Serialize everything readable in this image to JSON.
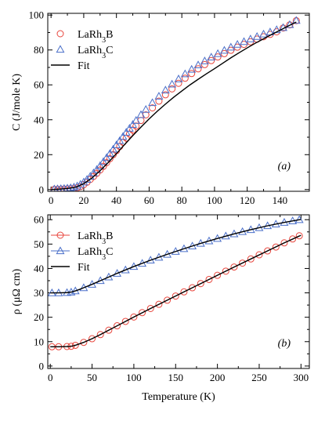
{
  "chart_data": [
    {
      "type": "scatter",
      "panel_tag": "(a)",
      "ylabel": "C (J/mole K)",
      "xlabel": "",
      "xlim": [
        -2,
        158
      ],
      "ylim": [
        -1,
        101
      ],
      "xticks": [
        0,
        20,
        40,
        60,
        80,
        100,
        120,
        140
      ],
      "yticks": [
        0,
        20,
        40,
        60,
        80,
        100
      ],
      "legend_position": "top-left",
      "series": [
        {
          "name": "LaRh3B",
          "marker": "circle",
          "color": "#e8453c",
          "x": [
            2,
            4,
            6,
            8,
            10,
            12,
            14,
            16,
            18,
            20,
            22,
            24,
            26,
            28,
            30,
            32,
            34,
            36,
            38,
            40,
            42,
            44,
            46,
            48,
            50,
            52,
            55,
            58,
            62,
            66,
            70,
            74,
            78,
            82,
            86,
            90,
            94,
            98,
            102,
            106,
            110,
            114,
            118,
            122,
            126,
            130,
            134,
            138,
            142,
            146,
            150
          ],
          "y": [
            0.1,
            0.15,
            0.2,
            0.3,
            0.4,
            0.5,
            0.7,
            1.0,
            1.7,
            2.8,
            4.2,
            5.8,
            7.5,
            9.3,
            11.2,
            13.3,
            15.4,
            17.7,
            20.0,
            22.3,
            24.7,
            27.1,
            29.5,
            31.8,
            34.1,
            36.4,
            39.6,
            42.8,
            46.8,
            50.7,
            54.3,
            57.7,
            60.9,
            63.8,
            66.5,
            69.2,
            71.6,
            73.9,
            76.0,
            77.9,
            79.8,
            81.6,
            83.2,
            84.7,
            86.2,
            87.6,
            88.9,
            90.4,
            92.6,
            94.4,
            96.8
          ]
        },
        {
          "name": "LaRh3C",
          "marker": "triangle",
          "color": "#4a6fc9",
          "x": [
            2,
            4,
            6,
            8,
            10,
            12,
            14,
            16,
            18,
            20,
            22,
            24,
            26,
            28,
            30,
            32,
            34,
            36,
            38,
            40,
            42,
            44,
            46,
            48,
            50,
            52,
            55,
            58,
            62,
            66,
            70,
            74,
            78,
            82,
            86,
            90,
            94,
            98,
            102,
            106,
            110,
            114,
            118,
            122,
            126,
            130,
            134,
            138,
            142,
            146,
            150
          ],
          "y": [
            0.3,
            0.4,
            0.5,
            0.6,
            0.8,
            1.0,
            1.4,
            2.0,
            3.0,
            4.3,
            5.8,
            7.6,
            9.5,
            11.5,
            13.7,
            16.0,
            18.3,
            20.7,
            23.1,
            25.6,
            28.0,
            30.4,
            32.8,
            35.1,
            37.3,
            39.6,
            42.9,
            45.9,
            49.8,
            53.5,
            57.0,
            60.4,
            63.4,
            66.3,
            68.9,
            71.4,
            73.7,
            75.9,
            77.9,
            79.8,
            81.6,
            83.2,
            84.8,
            86.3,
            87.7,
            89.1,
            90.3,
            91.6,
            92.8,
            94.5,
            96.9
          ]
        },
        {
          "name": "Fit",
          "marker": "line",
          "color": "#000000",
          "x": [
            0,
            5,
            10,
            15,
            20,
            25,
            30,
            35,
            40,
            45,
            50,
            55,
            60,
            65,
            70,
            75,
            80,
            85,
            90,
            95,
            100,
            105,
            110,
            115,
            120,
            125,
            130,
            135,
            140,
            145,
            150
          ],
          "y": [
            0,
            0.2,
            0.6,
            1.3,
            3.4,
            6.6,
            10.8,
            15.5,
            20.6,
            25.8,
            30.9,
            35.8,
            40.5,
            44.9,
            49.0,
            52.9,
            56.5,
            60.0,
            63.2,
            66.3,
            69.3,
            72.4,
            75.5,
            78.4,
            81.2,
            83.9,
            86.4,
            88.9,
            91.3,
            93.7,
            96.0
          ]
        }
      ]
    },
    {
      "type": "line",
      "panel_tag": "(b)",
      "ylabel": "ρ (μΩ cm)",
      "xlabel": "Temperature (K)",
      "xlim": [
        -3,
        310
      ],
      "ylim": [
        -1,
        62
      ],
      "xticks": [
        0,
        50,
        100,
        150,
        200,
        250,
        300
      ],
      "yticks": [
        0,
        10,
        20,
        30,
        40,
        50,
        60
      ],
      "legend_position": "top-left",
      "series": [
        {
          "name": "LaRh3B",
          "marker": "circle-line",
          "color": "#e8453c",
          "x": [
            2,
            10,
            20,
            25,
            30,
            40,
            50,
            60,
            70,
            80,
            90,
            100,
            110,
            120,
            130,
            140,
            150,
            160,
            170,
            180,
            190,
            200,
            210,
            220,
            230,
            240,
            250,
            260,
            270,
            280,
            290,
            298
          ],
          "y": [
            7.9,
            7.9,
            8.0,
            8.1,
            8.5,
            9.7,
            11.2,
            12.9,
            14.7,
            16.5,
            18.3,
            20.1,
            21.9,
            23.6,
            25.3,
            27.0,
            28.7,
            30.4,
            32.1,
            33.8,
            35.5,
            37.2,
            38.9,
            40.6,
            42.2,
            43.9,
            45.6,
            47.2,
            48.8,
            50.5,
            52.1,
            53.4
          ]
        },
        {
          "name": "LaRh3C",
          "marker": "triangle-line",
          "color": "#4a6fc9",
          "x": [
            2,
            10,
            20,
            25,
            30,
            40,
            50,
            60,
            70,
            80,
            90,
            100,
            110,
            120,
            130,
            140,
            150,
            160,
            170,
            180,
            190,
            200,
            210,
            220,
            230,
            240,
            250,
            260,
            270,
            280,
            290,
            298
          ],
          "y": [
            30.0,
            30.0,
            30.1,
            30.3,
            30.8,
            32.1,
            33.5,
            35.0,
            36.5,
            38.0,
            39.4,
            40.8,
            42.1,
            43.4,
            44.6,
            45.8,
            47.0,
            48.1,
            49.2,
            50.3,
            51.3,
            52.3,
            53.3,
            54.2,
            55.1,
            55.9,
            56.7,
            57.5,
            58.2,
            58.9,
            59.5,
            60.0
          ]
        },
        {
          "name": "Fit",
          "marker": "line",
          "color": "#000000",
          "x": [
            0,
            10,
            20,
            25,
            30,
            35,
            40,
            50,
            60,
            70,
            80,
            90,
            100,
            120,
            140,
            160,
            180,
            200,
            220,
            240,
            260,
            280,
            300
          ],
          "y": [
            7.9,
            7.9,
            8.0,
            8.1,
            8.5,
            9.1,
            9.7,
            11.2,
            12.9,
            14.7,
            16.5,
            18.3,
            20.1,
            23.6,
            27.0,
            30.4,
            33.8,
            37.2,
            40.6,
            43.9,
            47.2,
            50.5,
            53.6
          ]
        },
        {
          "name": "Fit",
          "marker": "line-nolegend",
          "color": "#000000",
          "x": [
            0,
            10,
            20,
            25,
            30,
            35,
            40,
            50,
            60,
            70,
            80,
            90,
            100,
            120,
            140,
            160,
            180,
            200,
            220,
            240,
            260,
            280,
            300
          ],
          "y": [
            30.0,
            30.0,
            30.1,
            30.3,
            30.8,
            31.4,
            32.1,
            33.5,
            35.0,
            36.5,
            38.0,
            39.4,
            40.8,
            43.4,
            45.8,
            48.1,
            50.3,
            52.3,
            54.2,
            55.9,
            57.5,
            58.9,
            60.1
          ]
        }
      ]
    }
  ]
}
